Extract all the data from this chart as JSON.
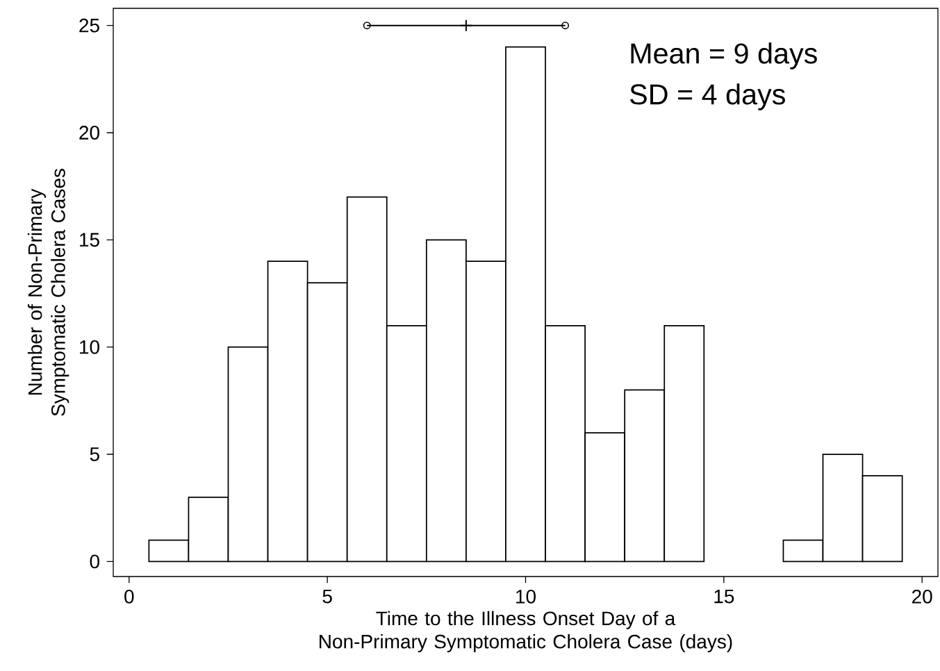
{
  "chart_data": {
    "type": "histogram",
    "xlabel": "Time to the Illness Onset Day of a Non-Primary Symptomatic Cholera Case (days)",
    "ylabel": "Number of Non-Primary Symptomatic Cholera Cases",
    "bins": [
      0.5,
      1.5,
      2.5,
      3.5,
      4.5,
      5.5,
      6.5,
      7.5,
      8.5,
      9.5,
      10.5,
      11.5,
      12.5,
      13.5,
      14.5,
      15.5,
      16.5,
      17.5,
      18.5,
      19.5
    ],
    "values": [
      1,
      3,
      10,
      14,
      13,
      17,
      11,
      15,
      14,
      24,
      11,
      6,
      8,
      11,
      0,
      0,
      1,
      5,
      4
    ],
    "color": "#ffffff",
    "series": [
      {
        "type": "line",
        "color": "#000000",
        "x": [
          6,
          11
        ],
        "values": [
          25,
          25
        ],
        "marker": "circle"
      },
      {
        "type": "scatter",
        "color": "#000000",
        "x": [
          8.5
        ],
        "values": [
          25
        ],
        "marker": "cross"
      }
    ],
    "xlim": [
      -0.4,
      20.4
    ],
    "ylim": [
      -0.7,
      25.8
    ],
    "xticks": [
      0,
      5,
      10,
      15,
      20
    ],
    "yticks": [
      0,
      5,
      10,
      15,
      20,
      25
    ],
    "grid": false,
    "annotations": [
      "Mean = 9 days",
      "SD = 4 days"
    ]
  }
}
